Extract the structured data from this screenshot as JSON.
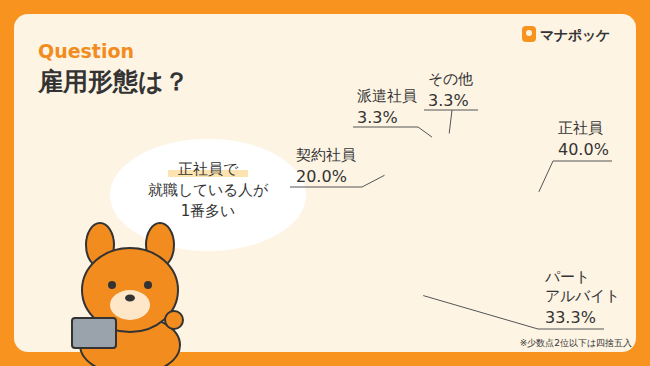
{
  "chart_data": {
    "type": "pie",
    "title": "雇用形態は？",
    "subtitle": "Question",
    "categories": [
      "正社員",
      "パート\nアルバイト",
      "契約社員",
      "派遣社員",
      "その他"
    ],
    "values": [
      40.0,
      33.3,
      20.0,
      3.3,
      3.3
    ],
    "value_labels": [
      "40.0%",
      "33.3%",
      "20.0%",
      "3.3%",
      "3.3%"
    ],
    "colors": [
      "#f9dcc4",
      "#f3b8a4",
      "#ef8b8b",
      "#4b8ba8",
      "#1f4e63"
    ],
    "data_labels": true,
    "annotations": [
      "正社員で\n就職している人が\n1番多い",
      "※少数点2位以下は四捨五入"
    ]
  },
  "logo": "マナポッケ"
}
